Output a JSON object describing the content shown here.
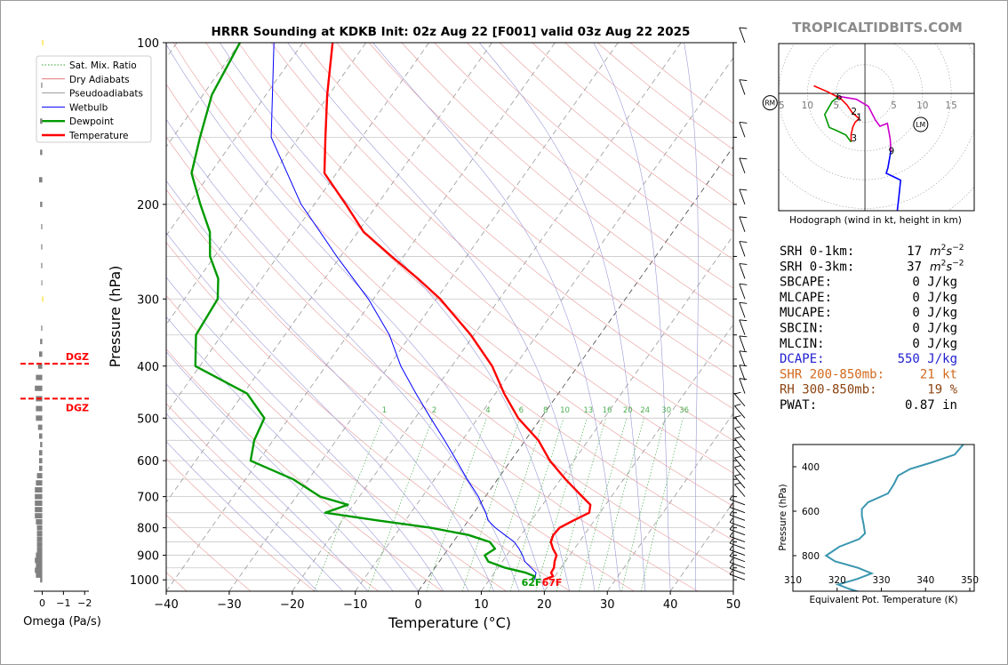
{
  "chart_data": [
    {
      "type": "line",
      "kind": "skew-t log-p sounding",
      "title": "HRRR Sounding at KDKB Init: 02z Aug 22 [F001] valid 03z Aug 22 2025",
      "xlabel": "Temperature (°C)",
      "ylabel": "Pressure (hPa)",
      "xlim": [
        -40,
        50
      ],
      "ylim": [
        1050,
        100
      ],
      "y_scale": "log",
      "x_ticks": [
        -40,
        -30,
        -20,
        -10,
        0,
        10,
        20,
        30,
        40,
        50
      ],
      "x_tick_labels": [
        "−40",
        "−30",
        "−20",
        "−10",
        "0",
        "10",
        "20",
        "30",
        "40",
        "50"
      ],
      "y_ticks": [
        1000,
        900,
        800,
        700,
        600,
        500,
        400,
        300,
        200,
        100
      ],
      "y_tick_labels": [
        "1000",
        "900",
        "800",
        "700",
        "600",
        "500",
        "400",
        "300",
        "200",
        "100"
      ],
      "grid": true,
      "legend_position": "top-left",
      "legend": [
        {
          "name": "Sat. Mix. Ratio",
          "color": "#2ca02c",
          "style": "dotted"
        },
        {
          "name": "Dry Adiabats",
          "color": "#d62728",
          "style": "thin"
        },
        {
          "name": "Pseudoadiabats",
          "color": "#7f7f7f",
          "style": "thin"
        },
        {
          "name": "Wetbulb",
          "color": "#0000ff",
          "style": "solid"
        },
        {
          "name": "Dewpoint",
          "color": "#009900",
          "style": "thick"
        },
        {
          "name": "Temperature",
          "color": "#ff0000",
          "style": "thick"
        }
      ],
      "mixing_ratio_labels": [
        "1",
        "2",
        "4",
        "6",
        "8",
        "10",
        "13",
        "16",
        "20",
        "24",
        "30",
        "36"
      ],
      "surface_labels": {
        "dewpoint": "62F",
        "temperature": "67F"
      },
      "series": [
        {
          "name": "Temperature",
          "color": "#ff0000",
          "points": [
            [
              1000,
              18.6
            ],
            [
              985,
              19.7
            ],
            [
              970,
              19
            ],
            [
              950,
              18.9
            ],
            [
              925,
              18.3
            ],
            [
              900,
              17.9
            ],
            [
              875,
              16.6
            ],
            [
              850,
              15.5
            ],
            [
              825,
              15.1
            ],
            [
              800,
              15.3
            ],
            [
              775,
              16.7
            ],
            [
              750,
              18.3
            ],
            [
              725,
              17.6
            ],
            [
              700,
              15.4
            ],
            [
              650,
              10.8
            ],
            [
              600,
              6.2
            ],
            [
              550,
              2.1
            ],
            [
              500,
              -3.6
            ],
            [
              450,
              -8.6
            ],
            [
              400,
              -13.6
            ],
            [
              350,
              -20.5
            ],
            [
              300,
              -29.4
            ],
            [
              275,
              -35.2
            ],
            [
              250,
              -41.9
            ],
            [
              225,
              -49.1
            ],
            [
              200,
              -55
            ],
            [
              175,
              -61.9
            ],
            [
              150,
              -65.8
            ],
            [
              125,
              -70.3
            ],
            [
              100,
              -75.3
            ]
          ]
        },
        {
          "name": "Dewpoint",
          "color": "#009900",
          "points": [
            [
              1000,
              16.7
            ],
            [
              985,
              16.8
            ],
            [
              970,
              15
            ],
            [
              950,
              11.2
            ],
            [
              925,
              7.8
            ],
            [
              900,
              6.5
            ],
            [
              875,
              7.4
            ],
            [
              850,
              5.8
            ],
            [
              825,
              1.6
            ],
            [
              800,
              -5.2
            ],
            [
              775,
              -14.5
            ],
            [
              750,
              -23.6
            ],
            [
              725,
              -20.9
            ],
            [
              700,
              -26.2
            ],
            [
              650,
              -32.4
            ],
            [
              600,
              -41.3
            ],
            [
              550,
              -43
            ],
            [
              500,
              -43.9
            ],
            [
              450,
              -49.4
            ],
            [
              400,
              -60.7
            ],
            [
              350,
              -64.1
            ],
            [
              300,
              -64.7
            ],
            [
              275,
              -66.9
            ],
            [
              250,
              -70.7
            ],
            [
              225,
              -73.5
            ],
            [
              200,
              -78.1
            ],
            [
              175,
              -83
            ],
            [
              150,
              -85.7
            ],
            [
              125,
              -88.6
            ],
            [
              100,
              -90
            ]
          ]
        },
        {
          "name": "Wetbulb",
          "color": "#0000ff",
          "points": [
            [
              1000,
              17.2
            ],
            [
              970,
              16.6
            ],
            [
              950,
              15.3
            ],
            [
              925,
              13.6
            ],
            [
              900,
              12.5
            ],
            [
              875,
              11.2
            ],
            [
              850,
              9.7
            ],
            [
              825,
              7.4
            ],
            [
              800,
              5.1
            ],
            [
              775,
              3.1
            ],
            [
              750,
              1.9
            ],
            [
              725,
              0.4
            ],
            [
              700,
              -1.1
            ],
            [
              650,
              -4.8
            ],
            [
              600,
              -8.6
            ],
            [
              550,
              -12.8
            ],
            [
              500,
              -17.5
            ],
            [
              450,
              -22.6
            ],
            [
              400,
              -28.1
            ],
            [
              350,
              -33.4
            ],
            [
              300,
              -40.8
            ],
            [
              250,
              -50.6
            ],
            [
              225,
              -56
            ],
            [
              200,
              -62.1
            ],
            [
              150,
              -74.4
            ],
            [
              100,
              -84.6
            ]
          ]
        }
      ]
    },
    {
      "type": "line",
      "kind": "hodograph",
      "title": "",
      "xlabel": "Hodograph (wind in kt, height in km)",
      "ylabel": "",
      "xlim": [
        -15,
        19
      ],
      "ylim": [
        -20,
        8.5
      ],
      "grid": "polar rings every 5 kt",
      "ring_labels": [
        "15",
        "10",
        "5",
        "5",
        "10",
        "15"
      ],
      "height_labels": [
        {
          "label": "6",
          "u": -4.5,
          "v": -0.5
        },
        {
          "label": "2",
          "u": -1.9,
          "v": -3
        },
        {
          "label": "1",
          "u": -1,
          "v": -4
        },
        {
          "label": "3",
          "u": -1.9,
          "v": -7.6
        },
        {
          "label": "9",
          "u": 4.6,
          "v": -9.8
        }
      ],
      "markers": [
        {
          "label": "RM",
          "u": -16.5,
          "v": -1.6
        },
        {
          "label": "LM",
          "u": 9.7,
          "v": -5.3
        }
      ],
      "segments": [
        {
          "name": "0-1 km",
          "color": "#ff0000",
          "points": [
            [
              -2.4,
              -8.3
            ],
            [
              -2.4,
              -7
            ],
            [
              -2.1,
              -5.7
            ],
            [
              -1.7,
              -4.9
            ],
            [
              -1,
              -4.3
            ]
          ]
        },
        {
          "name": "1-3 km",
          "color": "#009900",
          "points": [
            [
              -2.4,
              -8.3
            ],
            [
              -3.3,
              -7.1
            ],
            [
              -5,
              -6.3
            ],
            [
              -6.2,
              -5.8
            ],
            [
              -7,
              -3.6
            ],
            [
              -5.7,
              -1.4
            ],
            [
              -4.5,
              -0.5
            ]
          ]
        },
        {
          "name": "3-6 km",
          "color": "#ff0000",
          "points": [
            [
              -1,
              -4.3
            ],
            [
              -2.2,
              -3.3
            ],
            [
              -3.1,
              -2
            ],
            [
              -4.2,
              -0.9
            ],
            [
              -6.3,
              0.2
            ],
            [
              -8.9,
              1.3
            ]
          ]
        },
        {
          "name": "6-9 km",
          "color": "#cc00cc",
          "points": [
            [
              -4.5,
              -0.5
            ],
            [
              -1.5,
              -1
            ],
            [
              0.6,
              -2.2
            ],
            [
              1.8,
              -4.5
            ],
            [
              2.6,
              -5.6
            ],
            [
              3.9,
              -5.1
            ],
            [
              4.4,
              -7.8
            ],
            [
              4.5,
              -9.8
            ]
          ]
        },
        {
          "name": "9-12 km",
          "color": "#0000ff",
          "points": [
            [
              4.5,
              -9.8
            ],
            [
              4,
              -12.7
            ],
            [
              3.7,
              -13.6
            ],
            [
              5.4,
              -14.4
            ],
            [
              6.2,
              -14.8
            ],
            [
              5.9,
              -17.7
            ],
            [
              5.6,
              -20.2
            ]
          ]
        }
      ]
    },
    {
      "type": "line",
      "kind": "equivalent potential temperature profile",
      "title": "",
      "xlabel": "Equivalent Pot. Temperature (K)",
      "ylabel": "Pressure (hPa)",
      "xlim": [
        310,
        351
      ],
      "ylim": [
        960,
        300
      ],
      "x_ticks": [
        310,
        320,
        330,
        340,
        350
      ],
      "y_ticks": [
        400,
        600,
        800
      ],
      "series": [
        {
          "name": "",
          "color": "#3a96b0",
          "points": [
            [
              1000,
              329
            ],
            [
              975,
              327
            ],
            [
              950,
              322.8
            ],
            [
              930,
              320.2
            ],
            [
              905,
              324.5
            ],
            [
              880,
              327.8
            ],
            [
              855,
              324.8
            ],
            [
              825,
              319.5
            ],
            [
              800,
              317.5
            ],
            [
              760,
              320.5
            ],
            [
              725,
              325
            ],
            [
              700,
              326.3
            ],
            [
              660,
              326
            ],
            [
              620,
              325.6
            ],
            [
              590,
              325.6
            ],
            [
              560,
              327
            ],
            [
              520,
              331.5
            ],
            [
              480,
              332.8
            ],
            [
              440,
              333.8
            ],
            [
              410,
              336.5
            ],
            [
              380,
              341.5
            ],
            [
              345,
              346.6
            ],
            [
              300,
              348.5
            ],
            [
              250,
              350.5
            ]
          ]
        }
      ]
    },
    {
      "type": "bar",
      "kind": "omega profile",
      "title": "",
      "xlabel": "Omega (Pa/s)",
      "ylabel": "",
      "xlim": [
        0.4,
        -2.2
      ],
      "x_ticks": [
        0,
        -1,
        -2
      ],
      "x_tick_labels": [
        "0",
        "−1",
        "−2"
      ],
      "dgz_label": "DGZ",
      "dgz_bounds_hpa": [
        396,
        460
      ],
      "bars": [
        [
          1000,
          0.1
        ],
        [
          980,
          0.3
        ],
        [
          960,
          0.35
        ],
        [
          940,
          0.3
        ],
        [
          920,
          0.35
        ],
        [
          900,
          0.3
        ],
        [
          880,
          0.25
        ],
        [
          860,
          0.25
        ],
        [
          840,
          0.25
        ],
        [
          820,
          0.25
        ],
        [
          800,
          0.25
        ],
        [
          780,
          0.3
        ],
        [
          760,
          0.35
        ],
        [
          740,
          0.35
        ],
        [
          720,
          0.35
        ],
        [
          700,
          0.35
        ],
        [
          680,
          0.35
        ],
        [
          660,
          0.3
        ],
        [
          640,
          0.25
        ],
        [
          620,
          0.15
        ],
        [
          600,
          0.15
        ],
        [
          580,
          0.15
        ],
        [
          560,
          0.1
        ],
        [
          540,
          0.15
        ],
        [
          520,
          0.2
        ],
        [
          500,
          0.3
        ],
        [
          480,
          0.3
        ],
        [
          460,
          0.3
        ],
        [
          440,
          0.35
        ],
        [
          420,
          0.3
        ],
        [
          400,
          0.2
        ],
        [
          380,
          0.15
        ],
        [
          360,
          0.1
        ],
        [
          340,
          0.05
        ],
        [
          300,
          -0.02
        ],
        [
          280,
          0.04
        ],
        [
          260,
          0.05
        ],
        [
          240,
          0.05
        ],
        [
          220,
          0.05
        ],
        [
          200,
          0.1
        ],
        [
          180,
          0.15
        ],
        [
          160,
          0.1
        ],
        [
          140,
          0.1
        ],
        [
          120,
          0.05
        ],
        [
          100,
          -0.02
        ]
      ]
    }
  ],
  "watermark": "TROPICALTIDBITS.COM",
  "parameters": [
    {
      "label": "SRH 0-1km:",
      "value": "17",
      "unit_base": "m",
      "unit_sup1": "2",
      "unit_mid": "s",
      "unit_sup2": "−2",
      "color": "#000000"
    },
    {
      "label": "SRH 0-3km:",
      "value": "37",
      "unit_base": "m",
      "unit_sup1": "2",
      "unit_mid": "s",
      "unit_sup2": "−2",
      "color": "#000000"
    },
    {
      "label": "SBCAPE:",
      "value": "0 J/kg",
      "color": "#000000"
    },
    {
      "label": "MLCAPE:",
      "value": "0 J/kg",
      "color": "#000000"
    },
    {
      "label": "MUCAPE:",
      "value": "0 J/kg",
      "color": "#000000"
    },
    {
      "label": "SBCIN:",
      "value": "0 J/kg",
      "color": "#000000"
    },
    {
      "label": "MLCIN:",
      "value": "0 J/kg",
      "color": "#000000"
    },
    {
      "label": "DCAPE:",
      "value": "550 J/kg",
      "color": "#2020d0"
    },
    {
      "label": "SHR 200-850mb:",
      "value": "21 kt",
      "color": "#d2691e"
    },
    {
      "label": "RH 300-850mb:",
      "value": "19 %",
      "color": "#8b4513"
    },
    {
      "label": "PWAT:",
      "value": "0.87 in",
      "color": "#000000"
    }
  ]
}
